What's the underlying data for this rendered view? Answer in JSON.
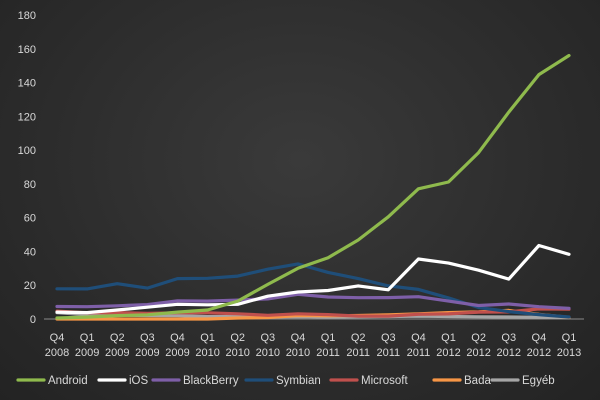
{
  "chart_data": {
    "type": "line",
    "title": "",
    "xlabel": "",
    "ylabel": "",
    "ylim": [
      0,
      180
    ],
    "yticks": [
      0,
      20,
      40,
      60,
      80,
      100,
      120,
      140,
      160,
      180
    ],
    "grid": false,
    "legend_position": "bottom",
    "categories": [
      [
        "Q4",
        "2008"
      ],
      [
        "Q1",
        "2009"
      ],
      [
        "Q2",
        "2009"
      ],
      [
        "Q3",
        "2009"
      ],
      [
        "Q4",
        "2009"
      ],
      [
        "Q1",
        "2010"
      ],
      [
        "Q2",
        "2010"
      ],
      [
        "Q3",
        "2010"
      ],
      [
        "Q4",
        "2010"
      ],
      [
        "Q1",
        "2011"
      ],
      [
        "Q2",
        "2011"
      ],
      [
        "Q3",
        "2011"
      ],
      [
        "Q4",
        "2011"
      ],
      [
        "Q1",
        "2012"
      ],
      [
        "Q2",
        "2012"
      ],
      [
        "Q3",
        "2012"
      ],
      [
        "Q4",
        "2012"
      ],
      [
        "Q1",
        "2013"
      ]
    ],
    "series": [
      {
        "name": "Android",
        "color": "#8fba4d",
        "values": [
          0.6,
          1.1,
          2.0,
          2.5,
          4.1,
          5.3,
          10.6,
          20.5,
          30.0,
          36.3,
          46.8,
          60.5,
          77.1,
          81.1,
          98.5,
          122.5,
          144.7,
          156.0
        ]
      },
      {
        "name": "iOS",
        "color": "#ffffff",
        "values": [
          4.1,
          3.8,
          5.3,
          7.0,
          8.7,
          8.4,
          8.7,
          13.5,
          16.0,
          16.9,
          19.6,
          17.3,
          35.5,
          33.1,
          28.9,
          23.6,
          43.5,
          38.3
        ]
      },
      {
        "name": "BlackBerry",
        "color": "#7e5fa8",
        "values": [
          7.4,
          7.3,
          7.8,
          8.5,
          10.7,
          10.6,
          11.2,
          11.9,
          14.6,
          13.0,
          12.6,
          12.7,
          13.2,
          10.6,
          8.0,
          8.9,
          7.3,
          6.3
        ]
      },
      {
        "name": "Symbian",
        "color": "#1f4e79",
        "values": [
          17.9,
          17.8,
          20.9,
          18.3,
          23.9,
          24.1,
          25.4,
          29.5,
          32.6,
          27.6,
          23.9,
          19.6,
          17.5,
          12.5,
          6.8,
          4.4,
          2.6,
          1.2
        ]
      },
      {
        "name": "Microsoft",
        "color": "#c0504d",
        "values": [
          4.7,
          3.7,
          3.8,
          3.3,
          3.7,
          3.7,
          3.1,
          2.2,
          3.1,
          2.6,
          1.7,
          1.7,
          2.8,
          3.0,
          4.1,
          4.2,
          6.0,
          5.8
        ]
      },
      {
        "name": "Bada",
        "color": "#f79646",
        "values": [
          0,
          0,
          0,
          0,
          0,
          0,
          0.6,
          0.9,
          2.1,
          1.9,
          2.1,
          2.5,
          3.1,
          3.8,
          4.2,
          5.1,
          2.8,
          1.0
        ]
      },
      {
        "name": "Egyéb",
        "color": "#a6a6a6",
        "values": [
          3.8,
          2.5,
          2.3,
          2.1,
          2.0,
          1.4,
          1.4,
          1.2,
          1.4,
          1.2,
          1.3,
          1.5,
          1.7,
          1.5,
          1.3,
          1.2,
          1.0,
          0.9
        ]
      }
    ]
  }
}
